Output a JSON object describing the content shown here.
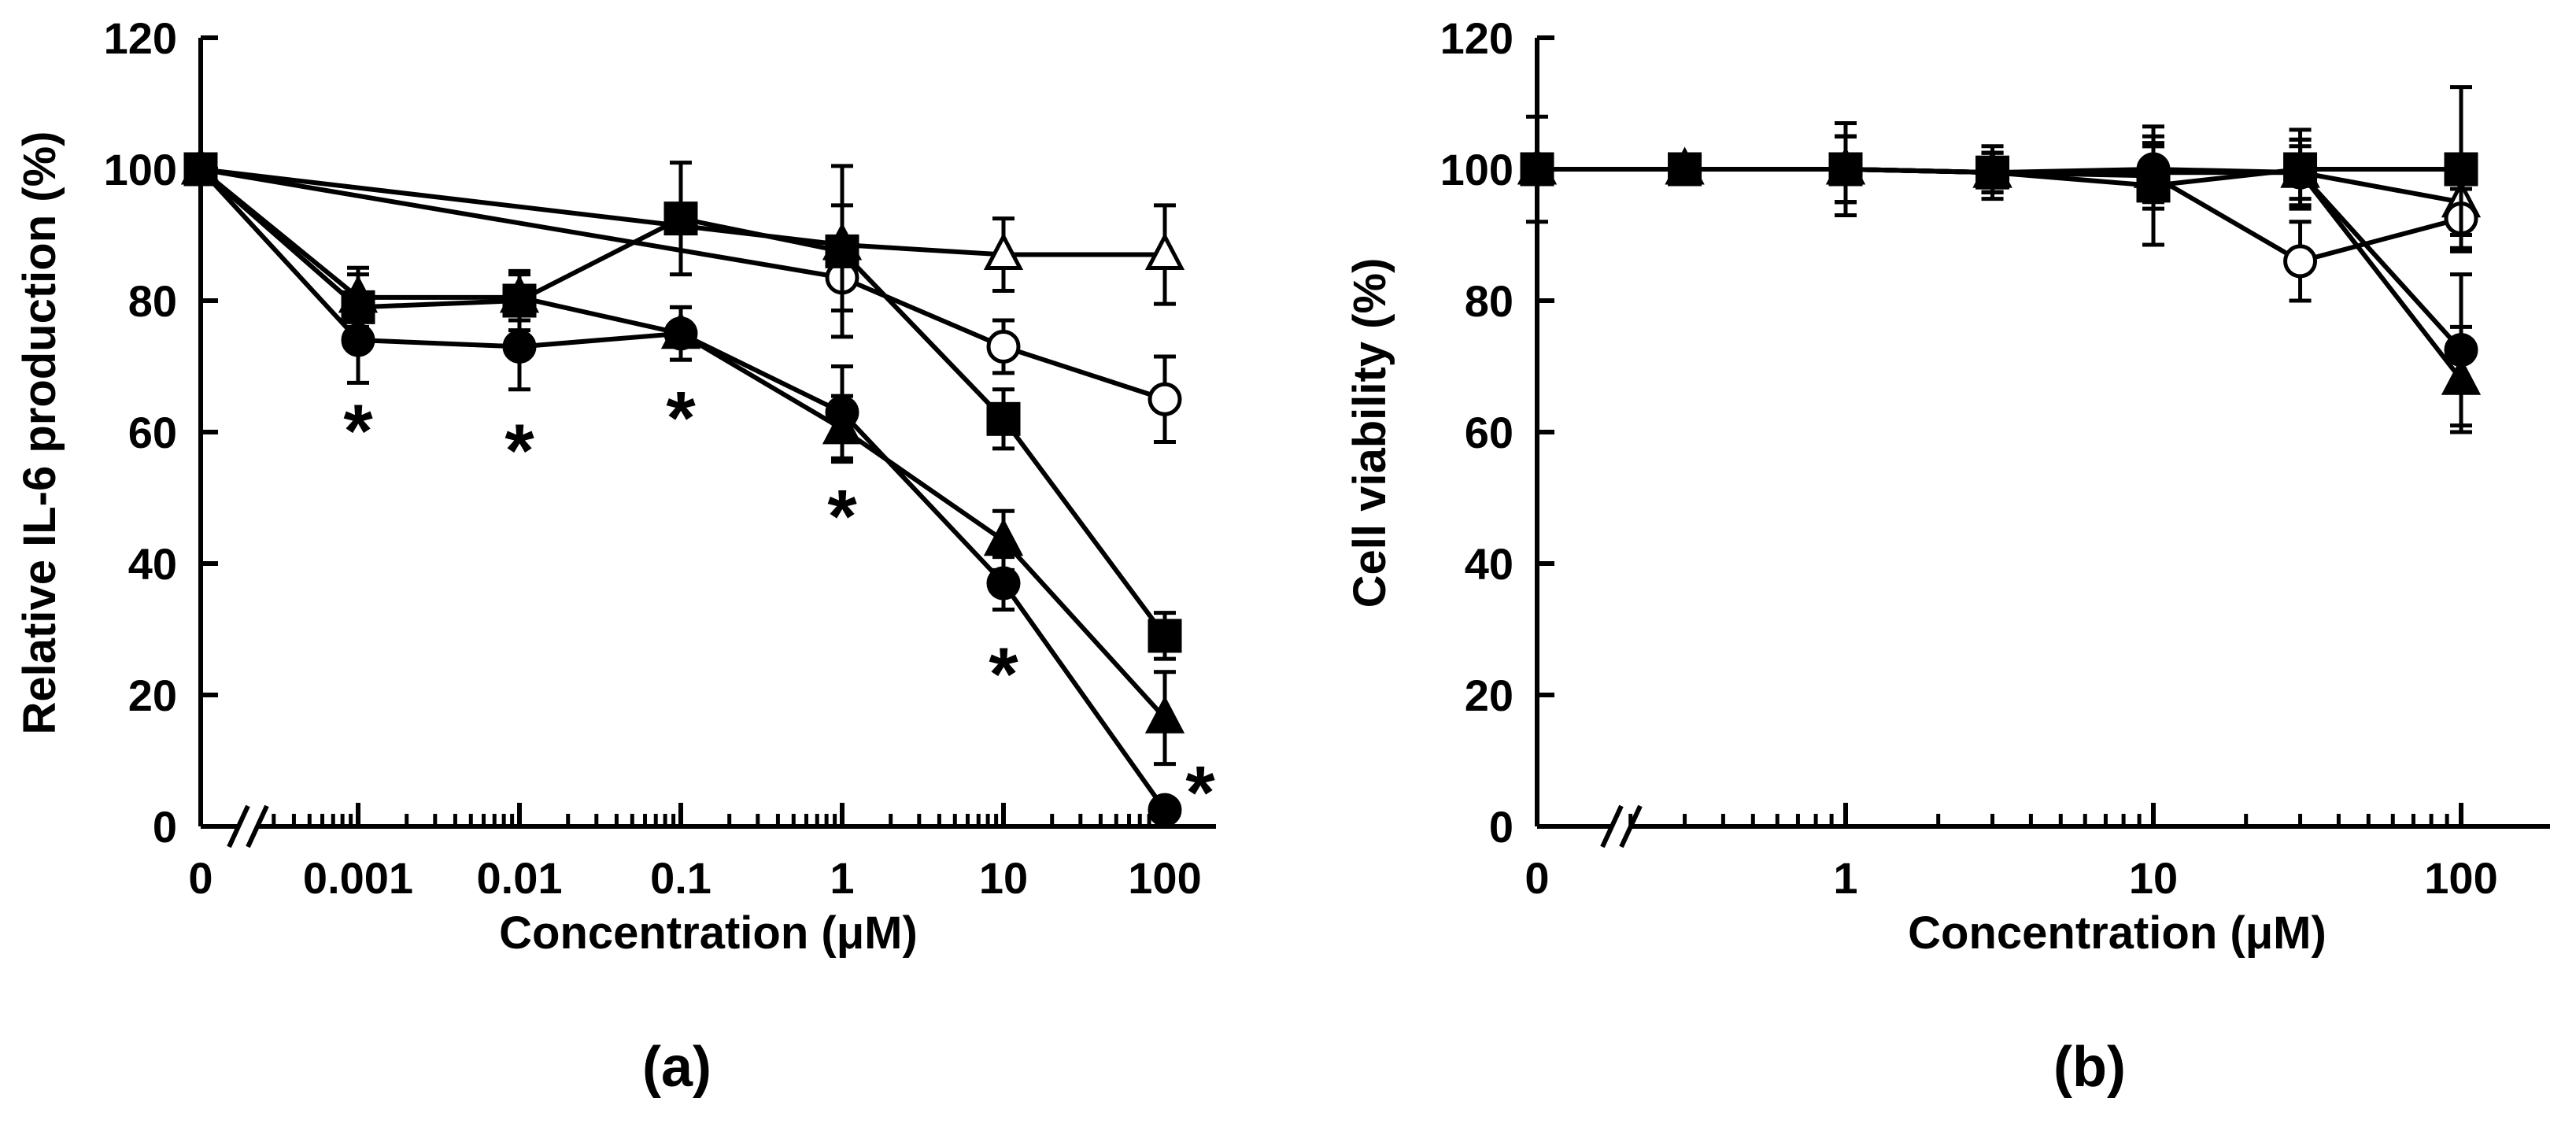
{
  "chart_data": [
    {
      "type": "line",
      "panel_label": "(a)",
      "xlabel": "Concentration (μM)",
      "ylabel": "Relative IL-6 production (%)",
      "ylim": [
        0,
        120
      ],
      "yticks": [
        "0",
        "20",
        "40",
        "60",
        "80",
        "100",
        "120"
      ],
      "xscale": "log with axis break",
      "xtick_labels": [
        "0",
        "0.001",
        "0.01",
        "0.1",
        "1",
        "10",
        "100"
      ],
      "x": [
        0,
        0.001,
        0.01,
        0.1,
        1,
        10,
        100
      ],
      "series": [
        {
          "name": "open triangle",
          "marker": "triangle-open",
          "values": [
            100,
            null,
            null,
            null,
            88.5,
            87,
            87
          ],
          "err": [
            0,
            0,
            0,
            0,
            6,
            5.5,
            7.5
          ]
        },
        {
          "name": "open circle",
          "marker": "circle-open",
          "values": [
            100,
            null,
            null,
            null,
            83.5,
            73,
            65
          ],
          "err": [
            0,
            0,
            0,
            0,
            5,
            4,
            6.5
          ]
        },
        {
          "name": "filled square",
          "marker": "square-filled",
          "values": [
            100,
            79,
            80,
            92.5,
            87.5,
            62,
            29
          ],
          "err": [
            0,
            5,
            4.5,
            8.5,
            13,
            4.5,
            3.5
          ]
        },
        {
          "name": "filled triangle",
          "marker": "triangle-filled",
          "values": [
            100,
            80.5,
            80.5,
            75,
            60.5,
            43.5,
            16.5
          ],
          "err": [
            0,
            4.5,
            3.5,
            4,
            5,
            4.5,
            7
          ]
        },
        {
          "name": "filled circle",
          "marker": "circle-filled",
          "values": [
            100,
            74,
            73,
            75,
            63,
            37,
            2.5
          ],
          "err": [
            0,
            6.5,
            6.5,
            4,
            7,
            4,
            1
          ]
        }
      ],
      "annotations": [
        {
          "text": "*",
          "x": 0.001,
          "y": 61
        },
        {
          "text": "*",
          "x": 0.01,
          "y": 58
        },
        {
          "text": "*",
          "x": 0.1,
          "y": 63
        },
        {
          "text": "*",
          "x": 1,
          "y": 48
        },
        {
          "text": "*",
          "x": 10,
          "y": 24
        },
        {
          "text": "*",
          "x": 100,
          "y": 6
        }
      ]
    },
    {
      "type": "line",
      "panel_label": "(b)",
      "xlabel": "Concentration (μM)",
      "ylabel": "Cell viability (%)",
      "ylim": [
        0,
        120
      ],
      "yticks": [
        "0",
        "20",
        "40",
        "60",
        "80",
        "100",
        "120"
      ],
      "xscale": "log with axis break",
      "xtick_labels": [
        "0",
        "1",
        "10",
        "100"
      ],
      "x": [
        0,
        0.3,
        1,
        3,
        10,
        30,
        100
      ],
      "series": [
        {
          "name": "open triangle",
          "marker": "triangle-open",
          "values": [
            100,
            100,
            100,
            99.5,
            99.5,
            99.5,
            95
          ],
          "err": [
            0,
            0,
            5,
            3,
            4,
            4,
            5
          ]
        },
        {
          "name": "open circle",
          "marker": "circle-open",
          "values": [
            100,
            100,
            100,
            99.5,
            99,
            86,
            92.5
          ],
          "err": [
            0,
            0,
            5,
            3,
            5,
            6,
            4.5
          ]
        },
        {
          "name": "filled square",
          "marker": "square-filled",
          "values": [
            100,
            100,
            100,
            99.5,
            97.5,
            100,
            100
          ],
          "err": [
            8,
            0,
            7,
            4,
            9,
            6,
            12.5
          ]
        },
        {
          "name": "filled triangle",
          "marker": "triangle-filled",
          "values": [
            100,
            100,
            100,
            99.5,
            99.5,
            99.5,
            68
          ],
          "err": [
            0,
            0,
            5,
            3,
            4,
            5,
            8
          ]
        },
        {
          "name": "filled circle",
          "marker": "circle-filled",
          "values": [
            100,
            100,
            100,
            99.5,
            100,
            99.5,
            72.5
          ],
          "err": [
            0,
            0,
            5,
            3,
            5,
            5,
            11.5
          ]
        }
      ],
      "annotations": []
    }
  ]
}
